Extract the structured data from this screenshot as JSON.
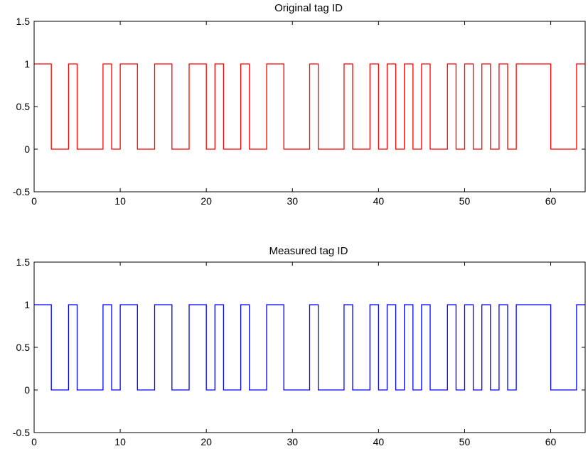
{
  "chart_data": [
    {
      "type": "line",
      "title": "Original tag ID",
      "xlabel": "",
      "ylabel": "",
      "xlim": [
        0,
        64
      ],
      "ylim": [
        -0.5,
        1.5
      ],
      "xticks": [
        0,
        10,
        20,
        30,
        40,
        50,
        60
      ],
      "yticks": [
        -0.5,
        0,
        0.5,
        1,
        1.5
      ],
      "xtick_labels": [
        "0",
        "10",
        "20",
        "30",
        "40",
        "50",
        "60"
      ],
      "ytick_labels": [
        "-0.5",
        "0",
        "0.5",
        "1",
        "1.5"
      ],
      "grid": false,
      "step": "post",
      "series": [
        {
          "color": "#ff0000",
          "x": [
            0,
            2,
            4,
            5,
            8,
            9,
            10,
            12,
            14,
            16,
            18,
            20,
            21,
            22,
            24,
            25,
            27,
            29,
            32,
            33,
            36,
            37,
            39,
            40,
            41,
            42,
            43,
            44,
            45,
            46,
            48,
            49,
            50,
            51,
            52,
            53,
            54,
            55,
            56,
            60,
            63,
            64
          ],
          "y": [
            1,
            0,
            1,
            0,
            1,
            0,
            1,
            0,
            1,
            0,
            1,
            0,
            1,
            0,
            1,
            0,
            1,
            0,
            1,
            0,
            1,
            0,
            1,
            0,
            1,
            0,
            1,
            0,
            1,
            0,
            1,
            0,
            1,
            0,
            1,
            0,
            1,
            0,
            1,
            0,
            1,
            1
          ]
        }
      ]
    },
    {
      "type": "line",
      "title": "Measured tag ID",
      "xlabel": "",
      "ylabel": "",
      "xlim": [
        0,
        64
      ],
      "ylim": [
        -0.5,
        1.5
      ],
      "xticks": [
        0,
        10,
        20,
        30,
        40,
        50,
        60
      ],
      "yticks": [
        -0.5,
        0,
        0.5,
        1,
        1.5
      ],
      "xtick_labels": [
        "0",
        "10",
        "20",
        "30",
        "40",
        "50",
        "60"
      ],
      "ytick_labels": [
        "-0.5",
        "0",
        "0.5",
        "1",
        "1.5"
      ],
      "grid": false,
      "step": "post",
      "series": [
        {
          "color": "#0000ff",
          "x": [
            0,
            2,
            4,
            5,
            8,
            9,
            10,
            12,
            14,
            16,
            18,
            20,
            21,
            22,
            24,
            25,
            27,
            29,
            32,
            33,
            36,
            37,
            39,
            40,
            41,
            42,
            43,
            44,
            45,
            46,
            48,
            49,
            50,
            51,
            52,
            53,
            54,
            55,
            56,
            60,
            63,
            64
          ],
          "y": [
            1,
            0,
            1,
            0,
            1,
            0,
            1,
            0,
            1,
            0,
            1,
            0,
            1,
            0,
            1,
            0,
            1,
            0,
            1,
            0,
            1,
            0,
            1,
            0,
            1,
            0,
            1,
            0,
            1,
            0,
            1,
            0,
            1,
            0,
            1,
            0,
            1,
            0,
            1,
            0,
            1,
            1
          ]
        }
      ]
    }
  ]
}
